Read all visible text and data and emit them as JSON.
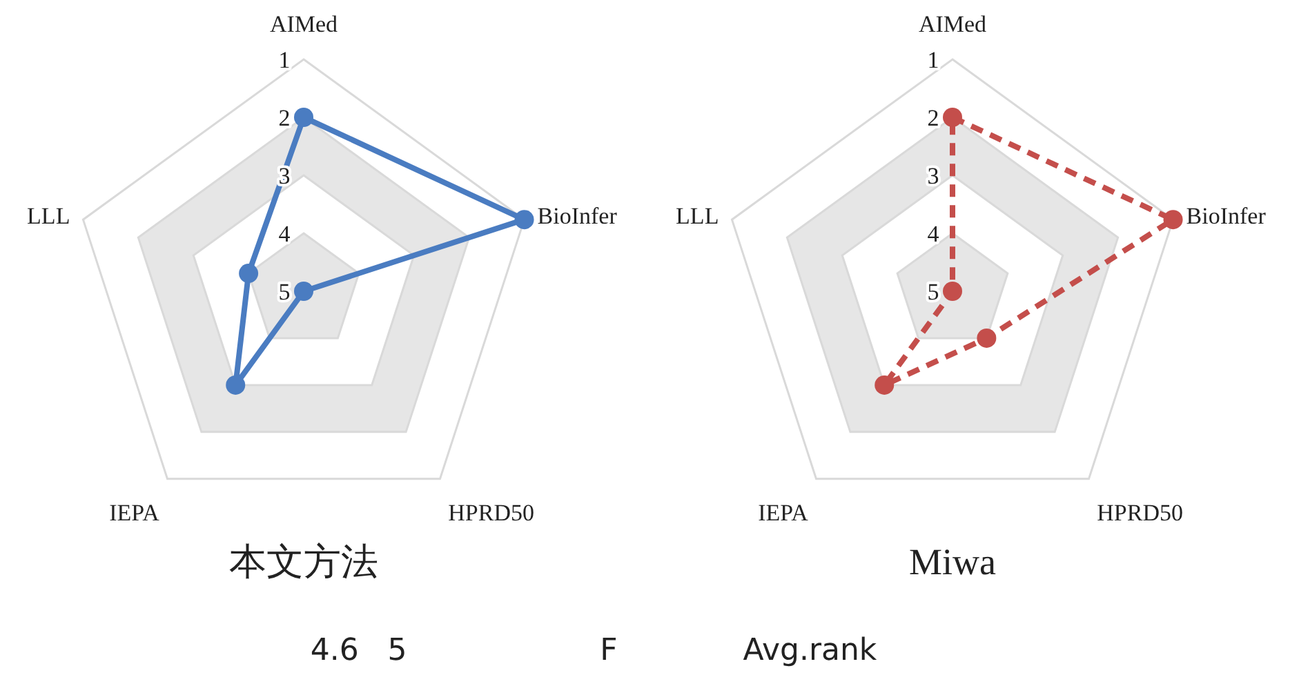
{
  "chart_data": [
    {
      "type": "radar",
      "title": "本文方法",
      "categories": [
        "AIMed",
        "BioInfer",
        "HPRD50",
        "IEPA",
        "LLL"
      ],
      "ylim": [
        5,
        1
      ],
      "yticks": [
        1,
        2,
        3,
        4,
        5
      ],
      "grid": true,
      "marker": "circle",
      "line_style": "solid",
      "series": [
        {
          "color": "#4a7cc1",
          "values": [
            2,
            1,
            5,
            3,
            4
          ]
        }
      ],
      "annotations": [
        "4.6   5                    F             Avg.rank"
      ]
    },
    {
      "type": "radar",
      "title": "Miwa",
      "categories": [
        "AIMed",
        "BioInfer",
        "HPRD50",
        "IEPA",
        "LLL"
      ],
      "ylim": [
        5,
        1
      ],
      "yticks": [
        1,
        2,
        3,
        4,
        5
      ],
      "grid": true,
      "marker": "circle",
      "line_style": "dashed",
      "series": [
        {
          "color": "#c44e4b",
          "values": [
            2,
            1,
            4,
            3,
            5
          ]
        }
      ]
    }
  ]
}
